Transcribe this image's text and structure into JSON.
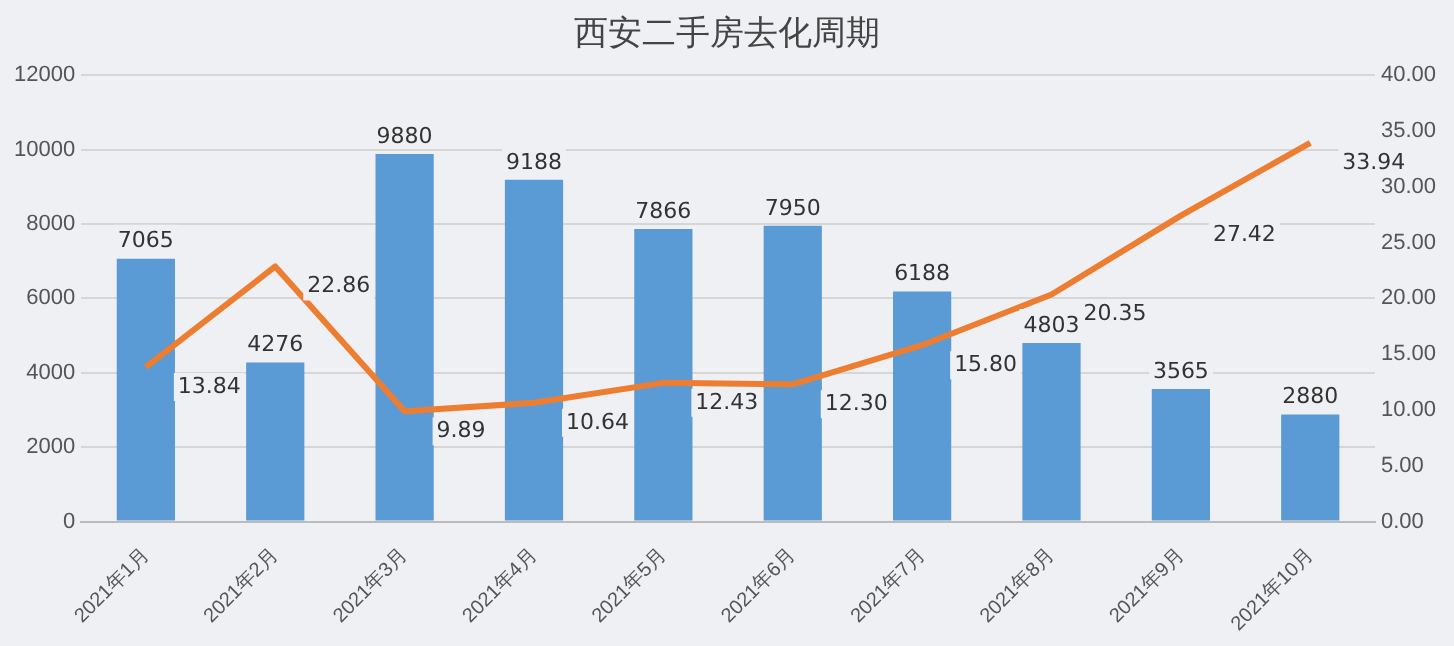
{
  "chart_data": {
    "type": "bar",
    "title": "西安二手房去化周期",
    "categories": [
      "2021年1月",
      "2021年2月",
      "2021年3月",
      "2021年4月",
      "2021年5月",
      "2021年6月",
      "2021年7月",
      "2021年8月",
      "2021年9月",
      "2021年10月"
    ],
    "series": [
      {
        "color": "#5b9bd5",
        "values": [
          7065,
          4276,
          9880,
          9188,
          7866,
          7950,
          6188,
          4803,
          3565,
          2880
        ],
        "value_labels": [
          "7065",
          "4276",
          "9880",
          "9188",
          "7866",
          "7950",
          "6188",
          "4803",
          "3565",
          "2880"
        ]
      },
      {
        "type": "line",
        "axis": "y2",
        "color": "#ed7d31",
        "values": [
          13.84,
          22.86,
          9.89,
          10.64,
          12.43,
          12.3,
          15.8,
          20.35,
          27.42,
          33.94
        ],
        "value_labels": [
          "13.84",
          "22.86",
          "9.89",
          "10.64",
          "12.43",
          "12.30",
          "15.80",
          "20.35",
          "27.42",
          "33.94"
        ]
      }
    ],
    "ylim": [
      0,
      12000
    ],
    "yticks": [
      0,
      2000,
      4000,
      6000,
      8000,
      10000,
      12000
    ],
    "y2lim": [
      0,
      40
    ],
    "y2ticks": [
      {
        "value": 0,
        "label": "0.00"
      },
      {
        "value": 5,
        "label": "5.00"
      },
      {
        "value": 10,
        "label": "10.00"
      },
      {
        "value": 15,
        "label": "15.00"
      },
      {
        "value": 20,
        "label": "20.00"
      },
      {
        "value": 25,
        "label": "25.00"
      },
      {
        "value": 30,
        "label": "30.00"
      },
      {
        "value": 35,
        "label": "35.00"
      },
      {
        "value": 40,
        "label": "40.00"
      }
    ],
    "grid": "y",
    "marker": "none",
    "line_style": "solid"
  }
}
